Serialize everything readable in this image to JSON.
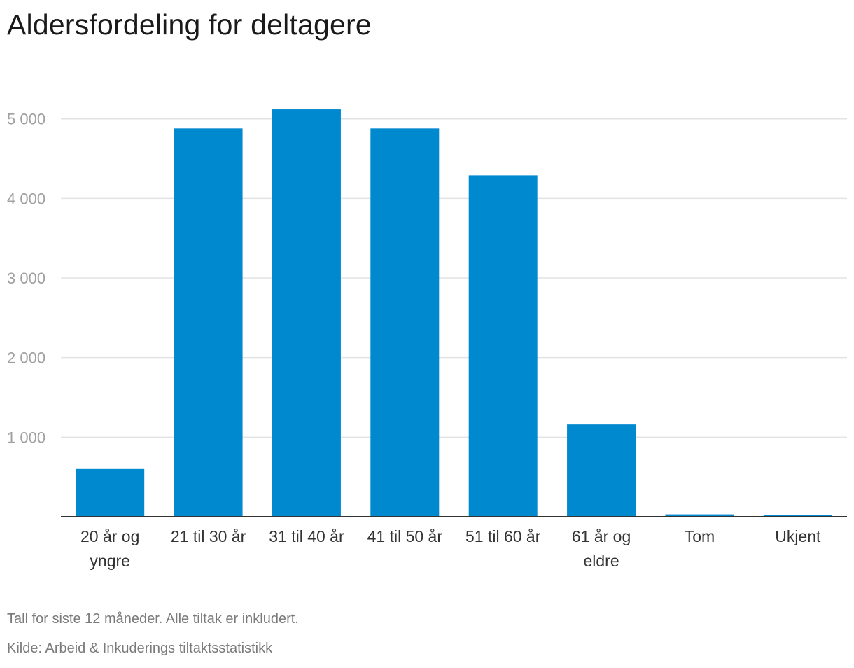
{
  "chart_data": {
    "type": "bar",
    "title": "Aldersfordeling for deltagere",
    "categories": [
      [
        "20 år og",
        "yngre"
      ],
      [
        "21 til 30 år"
      ],
      [
        "31 til 40 år"
      ],
      [
        "41 til 50 år"
      ],
      [
        "51 til 60 år"
      ],
      [
        "61 år og",
        "eldre"
      ],
      [
        "Tom"
      ],
      [
        "Ukjent"
      ]
    ],
    "values": [
      600,
      4880,
      5120,
      4880,
      4290,
      1160,
      30,
      25
    ],
    "yticks": [
      1000,
      2000,
      3000,
      4000,
      5000
    ],
    "ytick_labels": [
      "1 000",
      "2 000",
      "3 000",
      "4 000",
      "5 000"
    ],
    "ylim": [
      0,
      5600
    ],
    "xlabel": "",
    "ylabel": "",
    "grid": true,
    "bar_color": "#0089cf",
    "grid_color": "#e3e3e3",
    "axis_color": "#333333"
  },
  "footer": {
    "note": "Tall for siste 12 måneder. Alle tiltak er inkludert.",
    "source": "Kilde: Arbeid & Inkuderings tiltaktsstatistikk"
  }
}
